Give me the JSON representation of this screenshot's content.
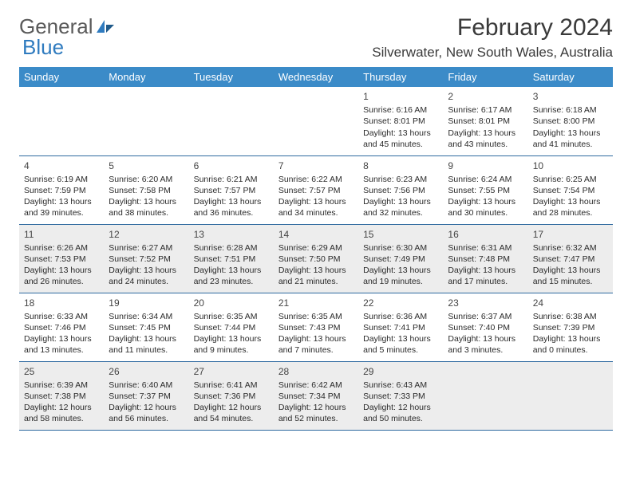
{
  "logo": {
    "text_general": "General",
    "text_blue": "Blue"
  },
  "title": "February 2024",
  "location": "Silverwater, New South Wales, Australia",
  "colors": {
    "header_bg": "#3b8bc8",
    "header_text": "#ffffff",
    "cell_border": "#2f6aa0",
    "shade_bg": "#ededed",
    "logo_gray": "#5a5a5a",
    "logo_blue": "#2f7bbf"
  },
  "day_headers": [
    "Sunday",
    "Monday",
    "Tuesday",
    "Wednesday",
    "Thursday",
    "Friday",
    "Saturday"
  ],
  "first_weekday_index": 4,
  "shaded_rows": [
    2,
    4
  ],
  "days": [
    {
      "n": 1,
      "sr": "6:16 AM",
      "ss": "8:01 PM",
      "dl": "13 hours and 45 minutes."
    },
    {
      "n": 2,
      "sr": "6:17 AM",
      "ss": "8:01 PM",
      "dl": "13 hours and 43 minutes."
    },
    {
      "n": 3,
      "sr": "6:18 AM",
      "ss": "8:00 PM",
      "dl": "13 hours and 41 minutes."
    },
    {
      "n": 4,
      "sr": "6:19 AM",
      "ss": "7:59 PM",
      "dl": "13 hours and 39 minutes."
    },
    {
      "n": 5,
      "sr": "6:20 AM",
      "ss": "7:58 PM",
      "dl": "13 hours and 38 minutes."
    },
    {
      "n": 6,
      "sr": "6:21 AM",
      "ss": "7:57 PM",
      "dl": "13 hours and 36 minutes."
    },
    {
      "n": 7,
      "sr": "6:22 AM",
      "ss": "7:57 PM",
      "dl": "13 hours and 34 minutes."
    },
    {
      "n": 8,
      "sr": "6:23 AM",
      "ss": "7:56 PM",
      "dl": "13 hours and 32 minutes."
    },
    {
      "n": 9,
      "sr": "6:24 AM",
      "ss": "7:55 PM",
      "dl": "13 hours and 30 minutes."
    },
    {
      "n": 10,
      "sr": "6:25 AM",
      "ss": "7:54 PM",
      "dl": "13 hours and 28 minutes."
    },
    {
      "n": 11,
      "sr": "6:26 AM",
      "ss": "7:53 PM",
      "dl": "13 hours and 26 minutes."
    },
    {
      "n": 12,
      "sr": "6:27 AM",
      "ss": "7:52 PM",
      "dl": "13 hours and 24 minutes."
    },
    {
      "n": 13,
      "sr": "6:28 AM",
      "ss": "7:51 PM",
      "dl": "13 hours and 23 minutes."
    },
    {
      "n": 14,
      "sr": "6:29 AM",
      "ss": "7:50 PM",
      "dl": "13 hours and 21 minutes."
    },
    {
      "n": 15,
      "sr": "6:30 AM",
      "ss": "7:49 PM",
      "dl": "13 hours and 19 minutes."
    },
    {
      "n": 16,
      "sr": "6:31 AM",
      "ss": "7:48 PM",
      "dl": "13 hours and 17 minutes."
    },
    {
      "n": 17,
      "sr": "6:32 AM",
      "ss": "7:47 PM",
      "dl": "13 hours and 15 minutes."
    },
    {
      "n": 18,
      "sr": "6:33 AM",
      "ss": "7:46 PM",
      "dl": "13 hours and 13 minutes."
    },
    {
      "n": 19,
      "sr": "6:34 AM",
      "ss": "7:45 PM",
      "dl": "13 hours and 11 minutes."
    },
    {
      "n": 20,
      "sr": "6:35 AM",
      "ss": "7:44 PM",
      "dl": "13 hours and 9 minutes."
    },
    {
      "n": 21,
      "sr": "6:35 AM",
      "ss": "7:43 PM",
      "dl": "13 hours and 7 minutes."
    },
    {
      "n": 22,
      "sr": "6:36 AM",
      "ss": "7:41 PM",
      "dl": "13 hours and 5 minutes."
    },
    {
      "n": 23,
      "sr": "6:37 AM",
      "ss": "7:40 PM",
      "dl": "13 hours and 3 minutes."
    },
    {
      "n": 24,
      "sr": "6:38 AM",
      "ss": "7:39 PM",
      "dl": "13 hours and 0 minutes."
    },
    {
      "n": 25,
      "sr": "6:39 AM",
      "ss": "7:38 PM",
      "dl": "12 hours and 58 minutes."
    },
    {
      "n": 26,
      "sr": "6:40 AM",
      "ss": "7:37 PM",
      "dl": "12 hours and 56 minutes."
    },
    {
      "n": 27,
      "sr": "6:41 AM",
      "ss": "7:36 PM",
      "dl": "12 hours and 54 minutes."
    },
    {
      "n": 28,
      "sr": "6:42 AM",
      "ss": "7:34 PM",
      "dl": "12 hours and 52 minutes."
    },
    {
      "n": 29,
      "sr": "6:43 AM",
      "ss": "7:33 PM",
      "dl": "12 hours and 50 minutes."
    }
  ],
  "labels": {
    "sunrise": "Sunrise:",
    "sunset": "Sunset:",
    "daylight": "Daylight:"
  }
}
